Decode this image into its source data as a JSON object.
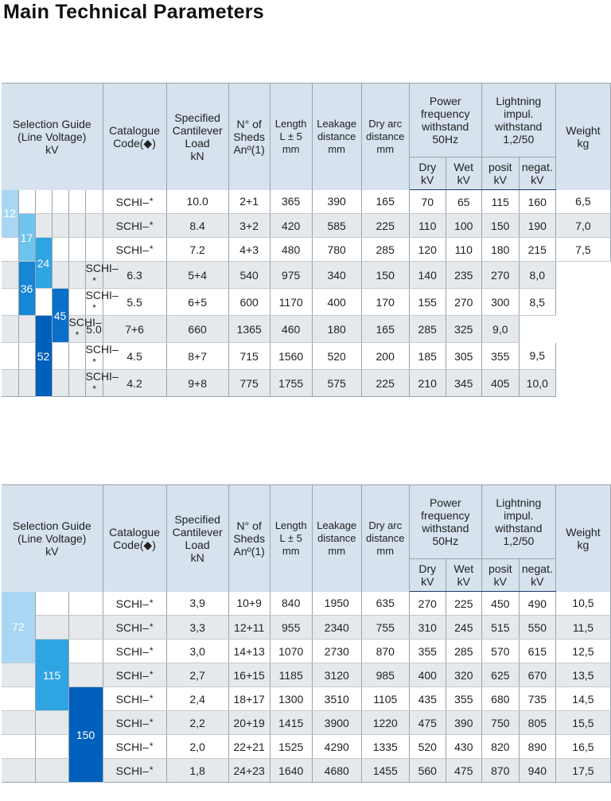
{
  "title": "Main Technical Parameters",
  "headers": {
    "selection_guide": [
      "Selection Guide",
      "(Line Voltage)",
      "kV"
    ],
    "catalogue_code": [
      "Catalogue",
      "Code(◆)"
    ],
    "cantilever": [
      "Specified",
      "Cantilever",
      "Load",
      "kN"
    ],
    "sheds": [
      "N° of",
      "Sheds",
      "Anº(1)"
    ],
    "length": [
      "Length",
      "L ± 5",
      "mm"
    ],
    "leakage": [
      "Leakage",
      "distance",
      "mm"
    ],
    "dry_arc": [
      "Dry arc",
      "distance",
      "mm"
    ],
    "power_freq": [
      "Power",
      "frequency",
      "withstand",
      "50Hz"
    ],
    "lightning": [
      "Lightning",
      "impul.",
      "withstand",
      "1,2/50"
    ],
    "weight": [
      "Weight",
      "kg"
    ],
    "dry": [
      "Dry",
      "kV"
    ],
    "wet": [
      "Wet",
      "kV"
    ],
    "posit": [
      "posit",
      "kV"
    ],
    "negat": [
      "negat.",
      "kV"
    ]
  },
  "table1": {
    "voltage_labels": [
      "12",
      "17",
      "24",
      "36",
      "45",
      "52"
    ],
    "rows": [
      {
        "code": "SCHI–",
        "load": "10.0",
        "sheds": "2+1",
        "length": "365",
        "leakage": "390",
        "dry_arc": "165",
        "dry": "70",
        "wet": "65",
        "posit": "115",
        "negat": "160",
        "weight": "6,5"
      },
      {
        "code": "SCHI–",
        "load": "8.4",
        "sheds": "3+2",
        "length": "420",
        "leakage": "585",
        "dry_arc": "225",
        "dry": "110",
        "wet": "100",
        "posit": "150",
        "negat": "190",
        "weight": "7,0"
      },
      {
        "code": "SCHI–",
        "load": "7.2",
        "sheds": "4+3",
        "length": "480",
        "leakage": "780",
        "dry_arc": "285",
        "dry": "120",
        "wet": "110",
        "posit": "180",
        "negat": "215",
        "weight": "7,5"
      },
      {
        "code": "SCHI–",
        "load": "6.3",
        "sheds": "5+4",
        "length": "540",
        "leakage": "975",
        "dry_arc": "340",
        "dry": "150",
        "wet": "140",
        "posit": "235",
        "negat": "270",
        "weight": "8,0"
      },
      {
        "code": "SCHI–",
        "load": "5.5",
        "sheds": "6+5",
        "length": "600",
        "leakage": "1170",
        "dry_arc": "400",
        "dry": "170",
        "wet": "155",
        "posit": "270",
        "negat": "300",
        "weight": "8,5"
      },
      {
        "code": "SCHI–",
        "load": "5.0",
        "sheds": "7+6",
        "length": "660",
        "leakage": "1365",
        "dry_arc": "460",
        "dry": "180",
        "wet": "165",
        "posit": "285",
        "negat": "325",
        "weight": "9,0"
      },
      {
        "code": "SCHI–",
        "load": "4.5",
        "sheds": "8+7",
        "length": "715",
        "leakage": "1560",
        "dry_arc": "520",
        "dry": "200",
        "wet": "185",
        "posit": "305",
        "negat": "355",
        "weight": "9,5"
      },
      {
        "code": "SCHI–",
        "load": "4.2",
        "sheds": "9+8",
        "length": "775",
        "leakage": "1755",
        "dry_arc": "575",
        "dry": "225",
        "wet": "210",
        "posit": "345",
        "negat": "405",
        "weight": "10,0"
      }
    ]
  },
  "table2": {
    "voltage_labels": [
      "72",
      "115",
      "150"
    ],
    "rows": [
      {
        "code": "SCHI–",
        "load": "3,9",
        "sheds": "10+9",
        "length": "840",
        "leakage": "1950",
        "dry_arc": "635",
        "dry": "270",
        "wet": "225",
        "posit": "450",
        "negat": "490",
        "weight": "10,5"
      },
      {
        "code": "SCHI–",
        "load": "3,3",
        "sheds": "12+11",
        "length": "955",
        "leakage": "2340",
        "dry_arc": "755",
        "dry": "310",
        "wet": "245",
        "posit": "515",
        "negat": "550",
        "weight": "11,5"
      },
      {
        "code": "SCHI–",
        "load": "3,0",
        "sheds": "14+13",
        "length": "1070",
        "leakage": "2730",
        "dry_arc": "870",
        "dry": "355",
        "wet": "285",
        "posit": "570",
        "negat": "615",
        "weight": "12,5"
      },
      {
        "code": "SCHI–",
        "load": "2,7",
        "sheds": "16+15",
        "length": "1185",
        "leakage": "3120",
        "dry_arc": "985",
        "dry": "400",
        "wet": "320",
        "posit": "625",
        "negat": "670",
        "weight": "13,5"
      },
      {
        "code": "SCHI–",
        "load": "2,4",
        "sheds": "18+17",
        "length": "1300",
        "leakage": "3510",
        "dry_arc": "1105",
        "dry": "435",
        "wet": "355",
        "posit": "680",
        "negat": "735",
        "weight": "14,5"
      },
      {
        "code": "SCHI–",
        "load": "2,2",
        "sheds": "20+19",
        "length": "1415",
        "leakage": "3900",
        "dry_arc": "1220",
        "dry": "475",
        "wet": "390",
        "posit": "750",
        "negat": "805",
        "weight": "15,5"
      },
      {
        "code": "SCHI–",
        "load": "2,0",
        "sheds": "22+21",
        "length": "1525",
        "leakage": "4290",
        "dry_arc": "1335",
        "dry": "520",
        "wet": "430",
        "posit": "820",
        "negat": "890",
        "weight": "16,5"
      },
      {
        "code": "SCHI–",
        "load": "1,8",
        "sheds": "24+23",
        "length": "1640",
        "leakage": "4680",
        "dry_arc": "1455",
        "dry": "560",
        "wet": "475",
        "posit": "870",
        "negat": "940",
        "weight": "17,5"
      }
    ]
  },
  "code_star": "*",
  "colors": {
    "header_bg": "#d6e2ee",
    "alt_row_bg": "#e6e9ec",
    "voltage_light": "#a9d7f3",
    "voltage_dark": "#0060bc"
  }
}
